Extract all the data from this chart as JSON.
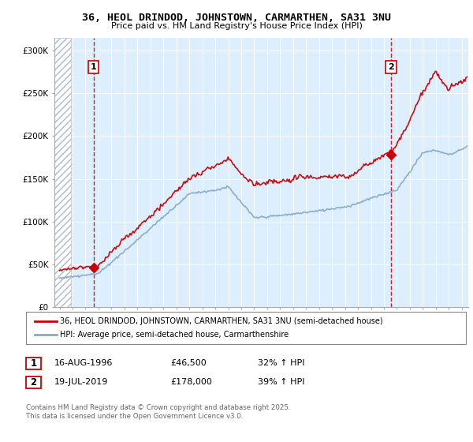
{
  "title1": "36, HEOL DRINDOD, JOHNSTOWN, CARMARTHEN, SA31 3NU",
  "title2": "Price paid vs. HM Land Registry's House Price Index (HPI)",
  "ylabel_ticks": [
    "£0",
    "£50K",
    "£100K",
    "£150K",
    "£200K",
    "£250K",
    "£300K"
  ],
  "ytick_vals": [
    0,
    50000,
    100000,
    150000,
    200000,
    250000,
    300000
  ],
  "ylim": [
    0,
    315000
  ],
  "xlim_start": 1993.6,
  "xlim_end": 2025.5,
  "sale1_year": 1996.625,
  "sale1_price": 46500,
  "sale2_year": 2019.54,
  "sale2_price": 178000,
  "legend_line1": "36, HEOL DRINDOD, JOHNSTOWN, CARMARTHEN, SA31 3NU (semi-detached house)",
  "legend_line2": "HPI: Average price, semi-detached house, Carmarthenshire",
  "table_row1": [
    "1",
    "16-AUG-1996",
    "£46,500",
    "32% ↑ HPI"
  ],
  "table_row2": [
    "2",
    "19-JUL-2019",
    "£178,000",
    "39% ↑ HPI"
  ],
  "footer": "Contains HM Land Registry data © Crown copyright and database right 2025.\nThis data is licensed under the Open Government Licence v3.0.",
  "red_color": "#cc0000",
  "blue_color": "#88aacc",
  "bg_color": "#ddeeff",
  "hatch_color": "#b0b8c8"
}
